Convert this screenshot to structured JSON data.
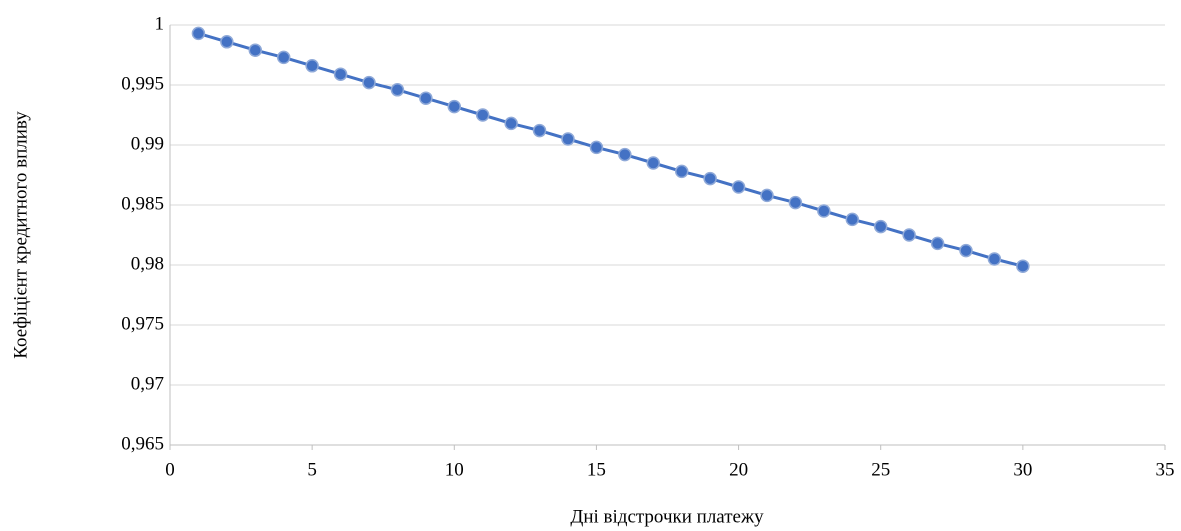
{
  "chart_data": {
    "type": "line",
    "x_label": "Дні відстрочки платежу",
    "y_label": "Коефіцієнт кредитного впливу",
    "x": [
      1,
      2,
      3,
      4,
      5,
      6,
      7,
      8,
      9,
      10,
      11,
      12,
      13,
      14,
      15,
      16,
      17,
      18,
      19,
      20,
      21,
      22,
      23,
      24,
      25,
      26,
      27,
      28,
      29,
      30
    ],
    "series": [
      {
        "color": "#4472c4",
        "values": [
          0.9993,
          0.9986,
          0.9979,
          0.9973,
          0.9966,
          0.9959,
          0.9952,
          0.9946,
          0.9939,
          0.9932,
          0.9925,
          0.9918,
          0.9912,
          0.9905,
          0.9898,
          0.9892,
          0.9885,
          0.9878,
          0.9872,
          0.9865,
          0.9858,
          0.9852,
          0.9845,
          0.9838,
          0.9832,
          0.9825,
          0.9818,
          0.9812,
          0.9805,
          0.9799
        ]
      }
    ],
    "xlim": [
      0,
      35
    ],
    "xticks": [
      0,
      5,
      10,
      15,
      20,
      25,
      30,
      35
    ],
    "ylim": [
      0.965,
      1
    ],
    "yticks": [
      {
        "value": 0.965,
        "label": "0,965"
      },
      {
        "value": 0.97,
        "label": "0,97"
      },
      {
        "value": 0.975,
        "label": "0,975"
      },
      {
        "value": 0.98,
        "label": "0,98"
      },
      {
        "value": 0.985,
        "label": "0,985"
      },
      {
        "value": 0.99,
        "label": "0,99"
      },
      {
        "value": 0.995,
        "label": "0,995"
      },
      1
    ],
    "grid": true
  }
}
